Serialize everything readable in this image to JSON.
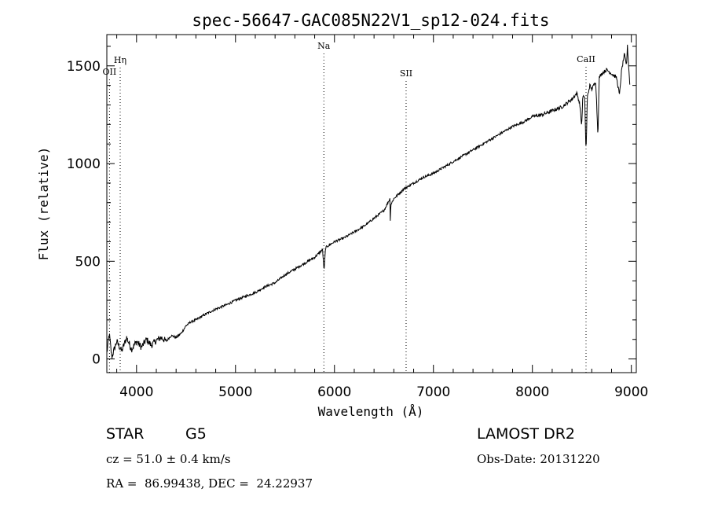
{
  "chart_data": {
    "type": "line",
    "title": "spec-56647-GAC085N22V1_sp12-024.fits",
    "xlabel": "Wavelength (Å)",
    "ylabel": "Flux (relative)",
    "xlim": [
      3700,
      9050
    ],
    "ylim": [
      -70,
      1660
    ],
    "x_ticks": [
      4000,
      5000,
      6000,
      7000,
      8000,
      9000
    ],
    "y_ticks": [
      0,
      500,
      1000,
      1500
    ],
    "grid": false,
    "line_color": "#000000",
    "lines": [
      {
        "label": "Hη",
        "wavelength": 3835
      },
      {
        "label": "OII",
        "wavelength": 3727
      },
      {
        "label": "Na",
        "wavelength": 5893
      },
      {
        "label": "SII",
        "wavelength": 6724
      },
      {
        "label": "CaII",
        "wavelength": 8542
      }
    ],
    "series": [
      {
        "x": [
          3700,
          3725,
          3750,
          3800,
          3850,
          3900,
          3950,
          4000,
          4050,
          4100,
          4150,
          4200,
          4250,
          4300,
          4350,
          4400,
          4450,
          4500,
          4550,
          4600,
          4700,
          4800,
          4900,
          5000,
          5100,
          5200,
          5300,
          5400,
          5500,
          5600,
          5700,
          5800,
          5880,
          5895,
          5910,
          6000,
          6100,
          6200,
          6300,
          6400,
          6500,
          6560,
          6563,
          6570,
          6600,
          6700,
          6800,
          6900,
          7000,
          7100,
          7200,
          7300,
          7400,
          7500,
          7600,
          7700,
          7800,
          7900,
          8000,
          8100,
          8200,
          8300,
          8400,
          8450,
          8480,
          8498,
          8510,
          8530,
          8542,
          8555,
          8580,
          8600,
          8640,
          8662,
          8675,
          8700,
          8750,
          8800,
          8850,
          8880,
          8900,
          8930,
          8950,
          8960,
          8975,
          8985
        ],
        "y": [
          30,
          130,
          10,
          90,
          40,
          110,
          50,
          90,
          60,
          100,
          70,
          95,
          110,
          90,
          120,
          110,
          130,
          170,
          190,
          200,
          230,
          255,
          275,
          300,
          320,
          340,
          370,
          390,
          430,
          460,
          490,
          520,
          560,
          450,
          570,
          600,
          620,
          650,
          680,
          720,
          760,
          820,
          700,
          790,
          820,
          870,
          900,
          930,
          950,
          980,
          1010,
          1040,
          1070,
          1100,
          1130,
          1160,
          1190,
          1210,
          1240,
          1250,
          1270,
          1290,
          1330,
          1360,
          1300,
          1190,
          1350,
          1330,
          1050,
          1340,
          1400,
          1380,
          1420,
          1140,
          1440,
          1460,
          1480,
          1460,
          1440,
          1350,
          1470,
          1560,
          1500,
          1600,
          1480,
          1400
        ]
      }
    ]
  },
  "info": {
    "object_type": "STAR",
    "subclass": "G5",
    "survey": "LAMOST DR2",
    "cz": "cz = 51.0 ± 0.4 km/s",
    "obs_date": "Obs-Date: 20131220",
    "coords": "RA =  86.99438, DEC =  24.22937"
  }
}
